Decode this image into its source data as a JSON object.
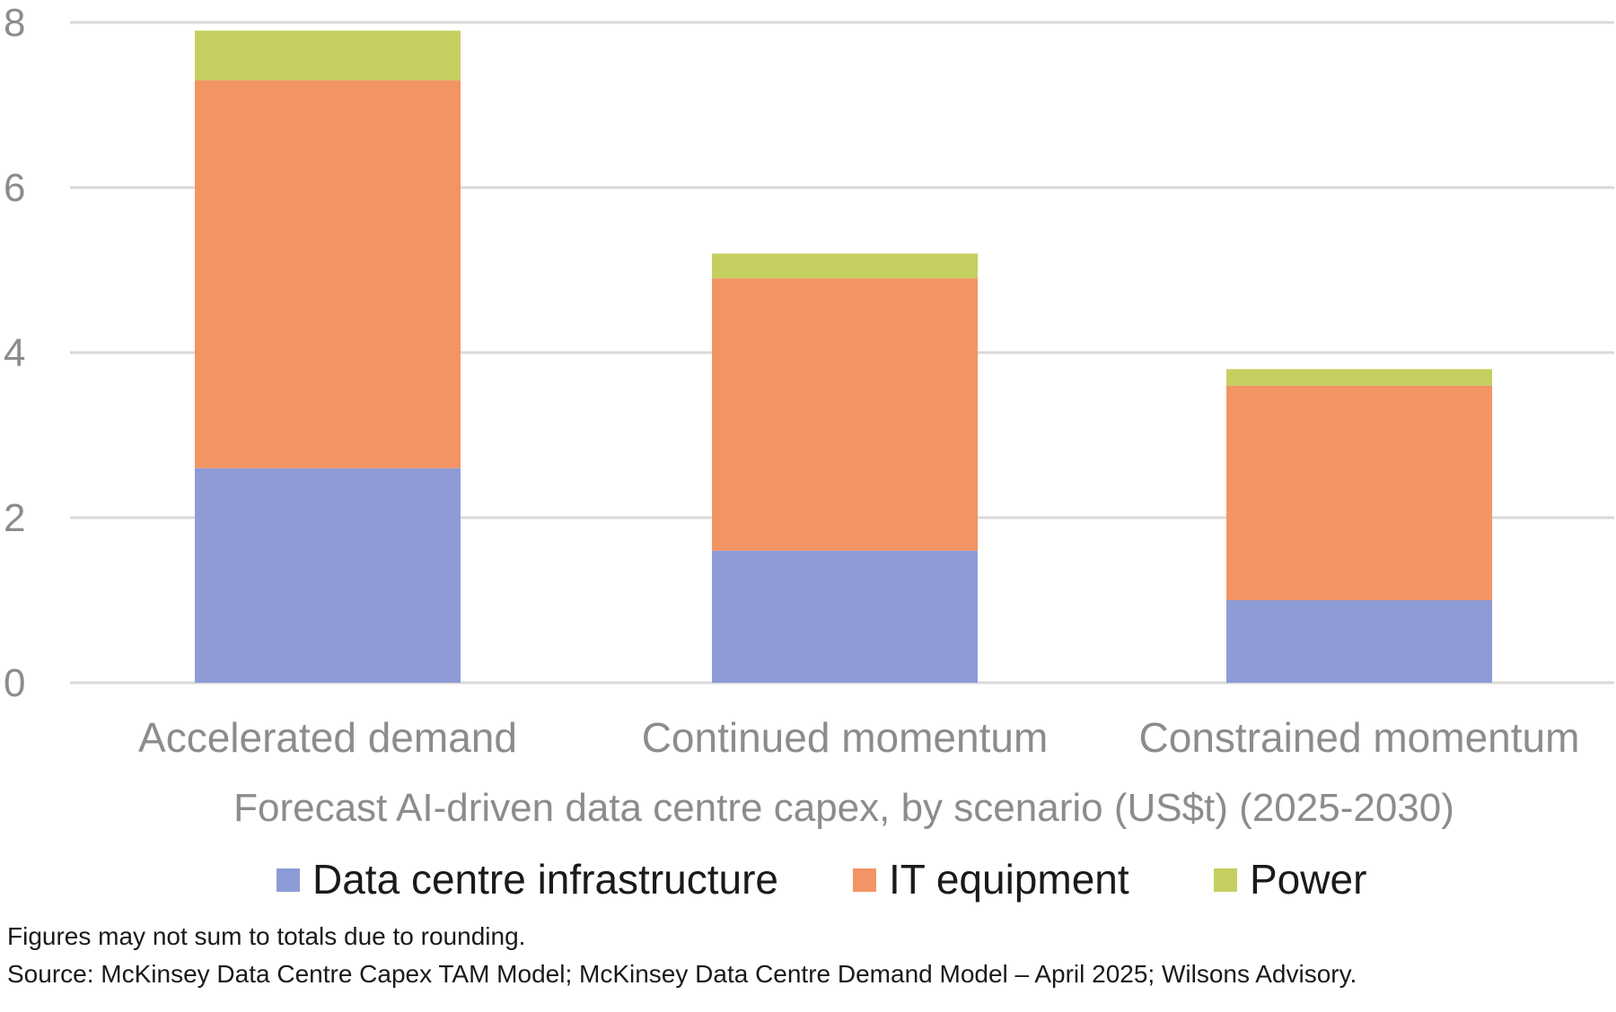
{
  "chart_data": {
    "type": "bar",
    "stacked": true,
    "categories": [
      "Accelerated demand",
      "Continued momentum",
      "Constrained momentum"
    ],
    "series": [
      {
        "name": "Data centre infrastructure",
        "color": "#8e9bd6",
        "values": [
          2.6,
          1.6,
          1.0
        ]
      },
      {
        "name": "IT equipment",
        "color": "#f39464",
        "values": [
          4.7,
          3.3,
          2.6
        ]
      },
      {
        "name": "Power",
        "color": "#c5cf5f",
        "values": [
          0.6,
          0.3,
          0.2
        ]
      }
    ],
    "xlabel": "Forecast AI-driven data centre capex, by scenario (US$t) (2025-2030)",
    "ylabel": "",
    "ylim": [
      0,
      8
    ],
    "yticks": [
      0,
      2,
      4,
      6,
      8
    ],
    "grid": true,
    "legend_position": "bottom"
  },
  "footnotes": {
    "note": "Figures may not sum to totals due to rounding.",
    "source": "Source: McKinsey Data Centre Capex TAM Model; McKinsey Data Centre Demand Model – April 2025; Wilsons Advisory."
  }
}
